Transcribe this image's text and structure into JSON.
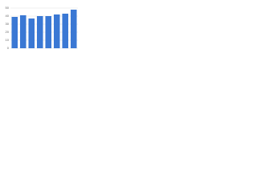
{
  "chart_data": {
    "type": "bar",
    "categories": [
      null,
      null,
      null,
      null,
      null,
      null,
      null,
      null
    ],
    "values": [
      39,
      41,
      37,
      40,
      40,
      42,
      43,
      48
    ],
    "color": "#3a78d4",
    "ylim": [
      0,
      50
    ],
    "yticks": [
      0,
      10,
      20,
      30,
      40,
      50
    ],
    "grid": true
  }
}
